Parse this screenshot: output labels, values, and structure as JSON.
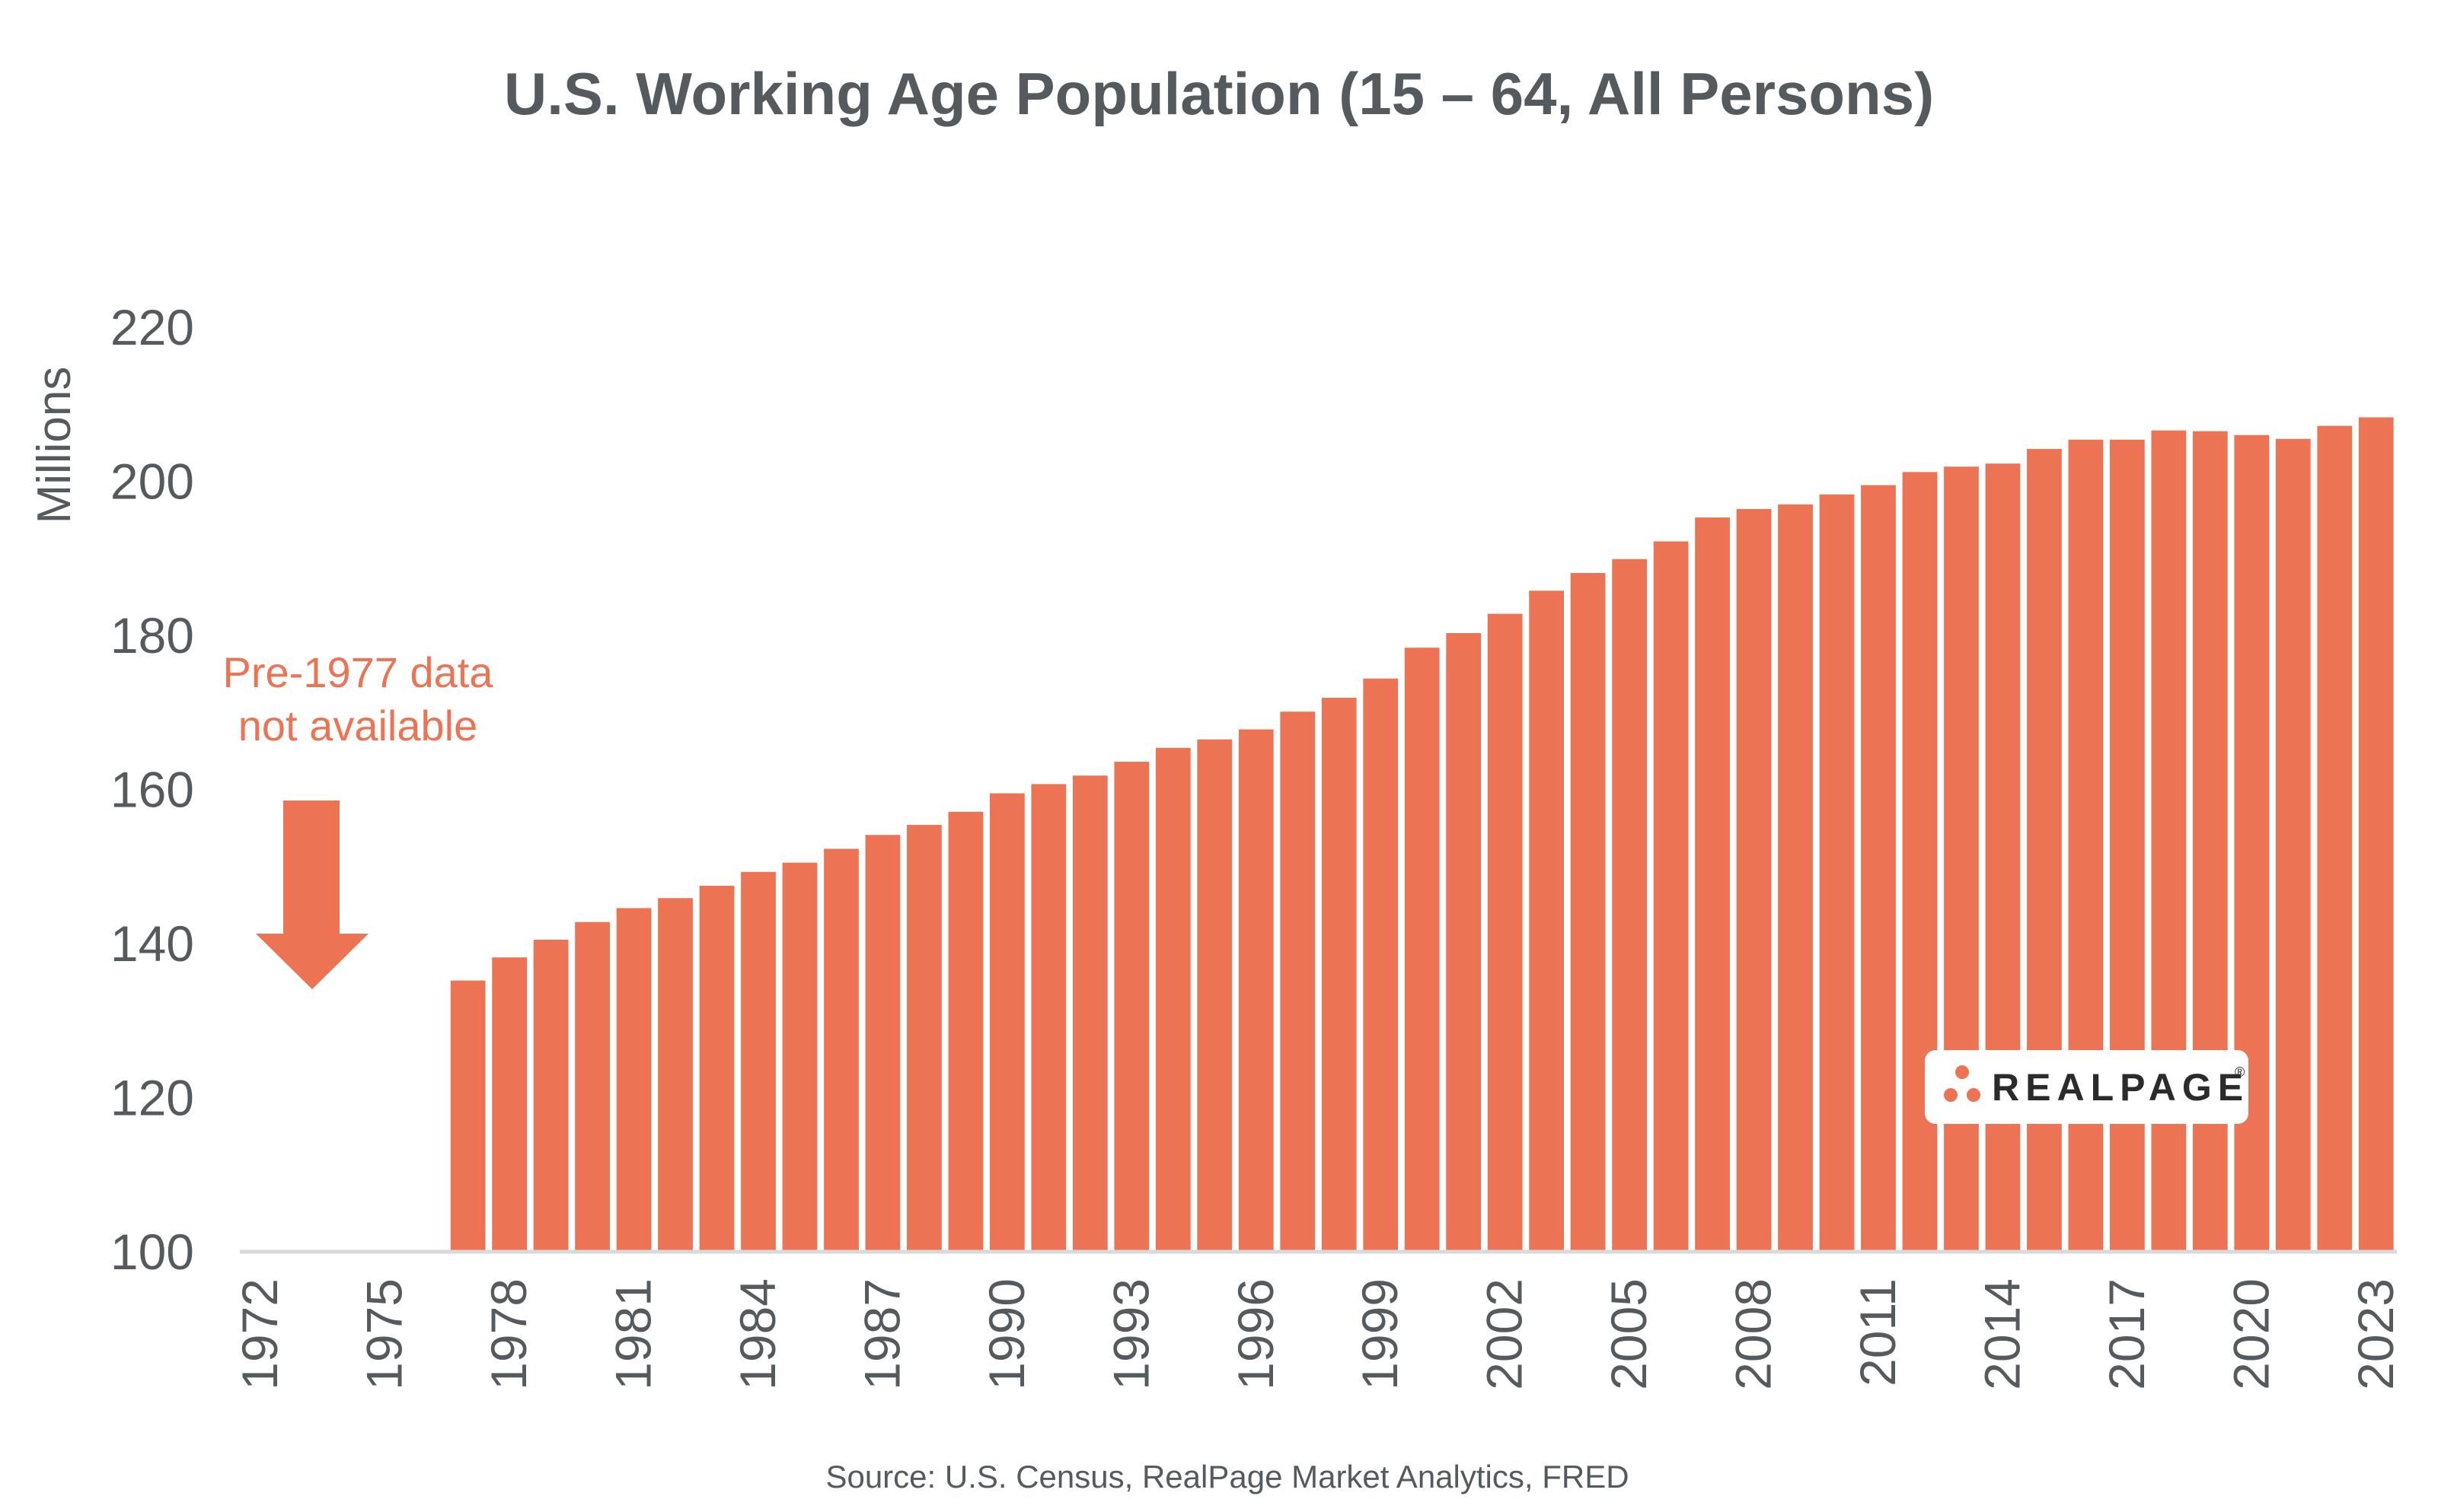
{
  "colors": {
    "bar": "#ec7454",
    "text": "#555a5e",
    "axis": "#d9d9d9",
    "accent": "#ec7454"
  },
  "annotation": {
    "line1": "Pre-1977 data",
    "line2": "not available",
    "icon": "down-arrow-icon"
  },
  "source": "Source: U.S. Census, RealPage Market Analytics, FRED",
  "logo": {
    "text": "REALPAGE",
    "trademark": "®"
  },
  "chart_data": {
    "type": "bar",
    "title": "U.S. Working Age Population (15 – 64, All Persons)",
    "xlabel": "",
    "ylabel": "Millions",
    "ylim": [
      100,
      220
    ],
    "yticks": [
      100,
      120,
      140,
      160,
      180,
      200,
      220
    ],
    "grid": false,
    "xtick_labels": [
      "1972",
      "1975",
      "1978",
      "1981",
      "1984",
      "1987",
      "1990",
      "1993",
      "1996",
      "1999",
      "2002",
      "2005",
      "2008",
      "2011",
      "2014",
      "2017",
      "2020",
      "2023"
    ],
    "categories": [
      "1972",
      "1973",
      "1974",
      "1975",
      "1976",
      "1977",
      "1978",
      "1979",
      "1980",
      "1981",
      "1982",
      "1983",
      "1984",
      "1985",
      "1986",
      "1987",
      "1988",
      "1989",
      "1990",
      "1991",
      "1992",
      "1993",
      "1994",
      "1995",
      "1996",
      "1997",
      "1998",
      "1999",
      "2000",
      "2001",
      "2002",
      "2003",
      "2004",
      "2005",
      "2006",
      "2007",
      "2008",
      "2009",
      "2010",
      "2011",
      "2012",
      "2013",
      "2014",
      "2015",
      "2016",
      "2017",
      "2018",
      "2019",
      "2020",
      "2021",
      "2022",
      "2023"
    ],
    "values": [
      null,
      null,
      null,
      null,
      null,
      135.2,
      138.2,
      140.5,
      142.8,
      144.6,
      145.9,
      147.5,
      149.3,
      150.5,
      152.3,
      154.1,
      155.4,
      157.1,
      159.5,
      160.7,
      161.8,
      163.6,
      165.4,
      166.5,
      167.8,
      170.1,
      171.9,
      174.4,
      178.4,
      180.3,
      182.8,
      185.8,
      188.1,
      189.9,
      192.2,
      195.3,
      196.4,
      197.0,
      198.3,
      199.5,
      201.2,
      201.9,
      202.3,
      204.2,
      205.4,
      205.4,
      206.6,
      206.5,
      206.0,
      205.5,
      207.2,
      208.3
    ]
  }
}
